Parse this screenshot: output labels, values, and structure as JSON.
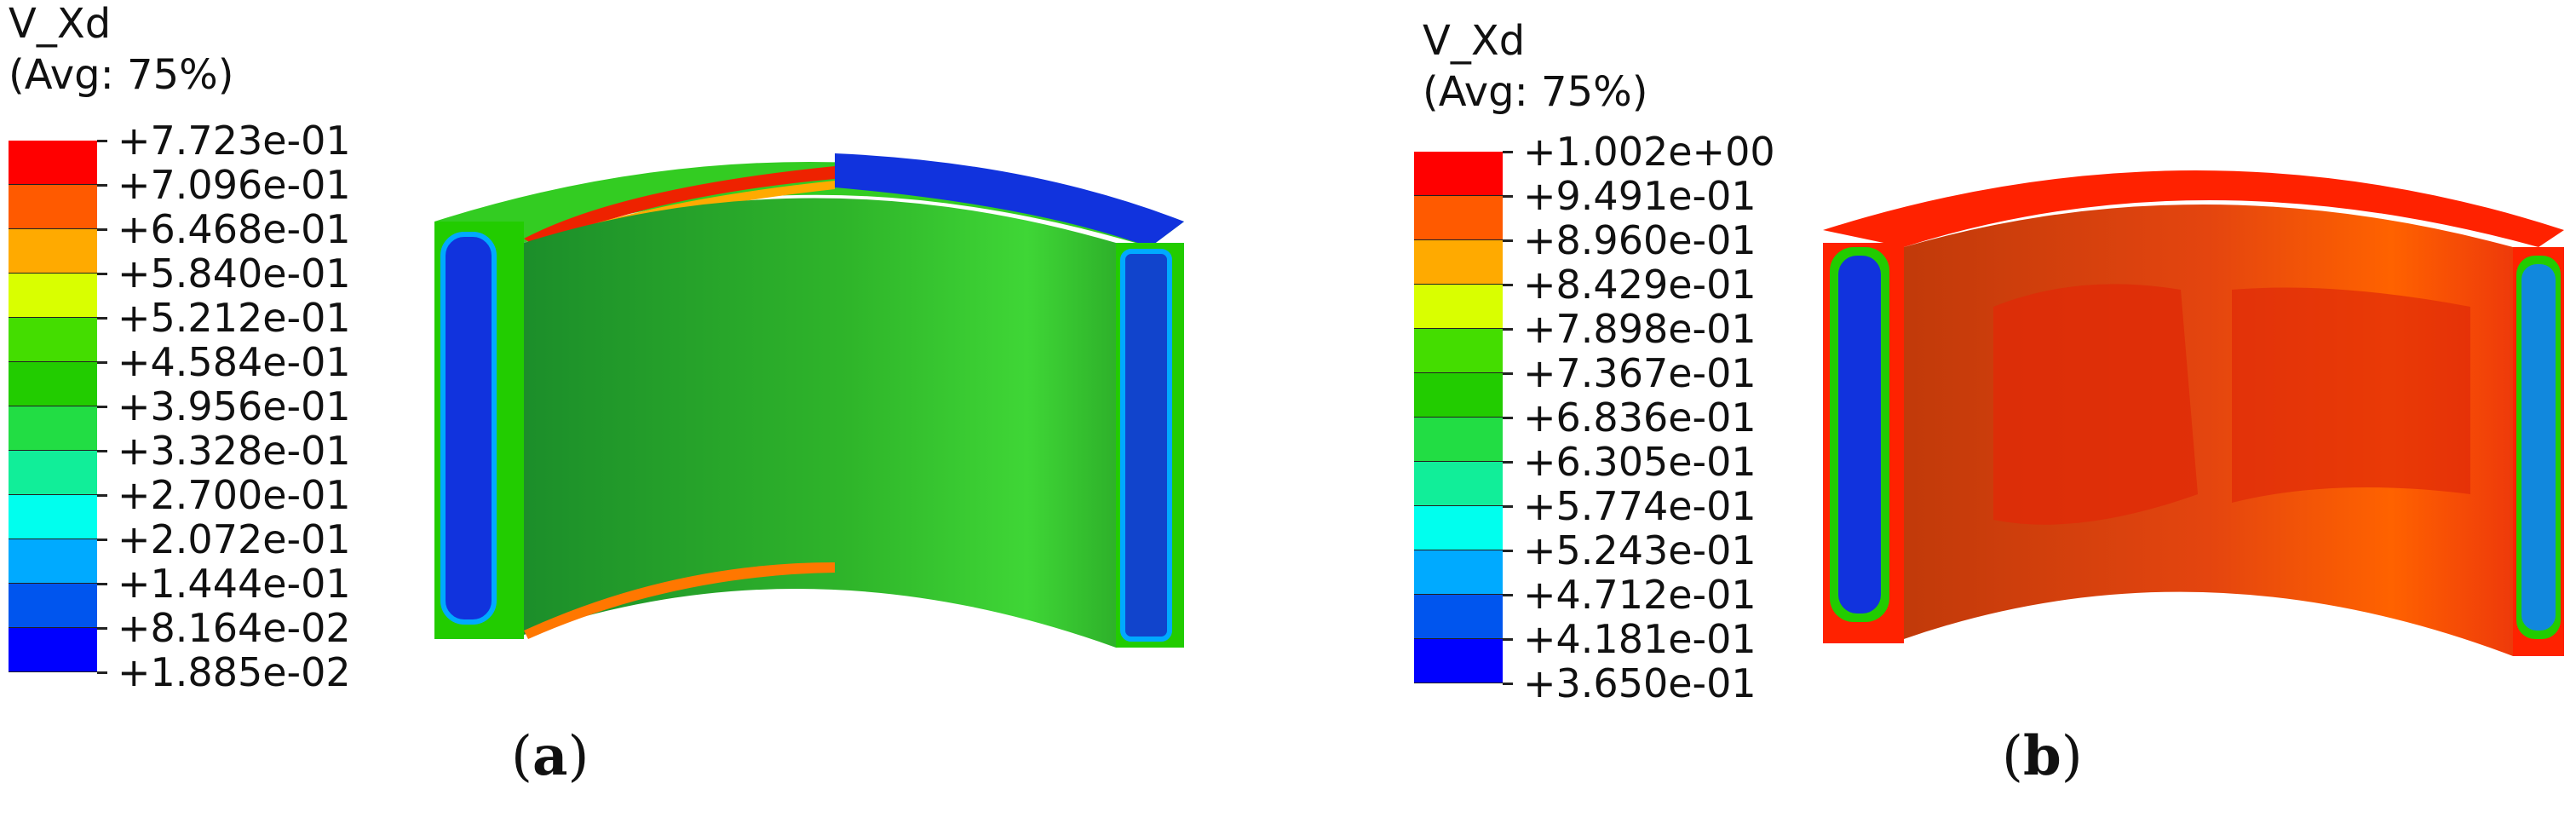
{
  "panels": [
    {
      "variable": "V_Xd",
      "averaging": "(Avg: 75%)",
      "legend_values": [
        "+7.723e-01",
        "+7.096e-01",
        "+6.468e-01",
        "+5.840e-01",
        "+5.212e-01",
        "+4.584e-01",
        "+3.956e-01",
        "+3.328e-01",
        "+2.700e-01",
        "+2.072e-01",
        "+1.444e-01",
        "+8.164e-02",
        "+1.885e-02"
      ],
      "legend_colors": [
        "#ff0000",
        "#ff5a00",
        "#ffaa00",
        "#d9ff00",
        "#44dd00",
        "#22cc00",
        "#22dd44",
        "#11ee99",
        "#00ffee",
        "#00aaff",
        "#0055ee",
        "#0000ff"
      ],
      "label": "a"
    },
    {
      "variable": "V_Xd",
      "averaging": "(Avg: 75%)",
      "legend_values": [
        "+1.002e+00",
        "+9.491e-01",
        "+8.960e-01",
        "+8.429e-01",
        "+7.898e-01",
        "+7.367e-01",
        "+6.836e-01",
        "+6.305e-01",
        "+5.774e-01",
        "+5.243e-01",
        "+4.712e-01",
        "+4.181e-01",
        "+3.650e-01"
      ],
      "legend_colors": [
        "#ff0000",
        "#ff5a00",
        "#ffaa00",
        "#d9ff00",
        "#44dd00",
        "#22cc00",
        "#22dd44",
        "#11ee99",
        "#00ffee",
        "#00aaff",
        "#0055ee",
        "#0000ff"
      ],
      "label": "b"
    }
  ]
}
